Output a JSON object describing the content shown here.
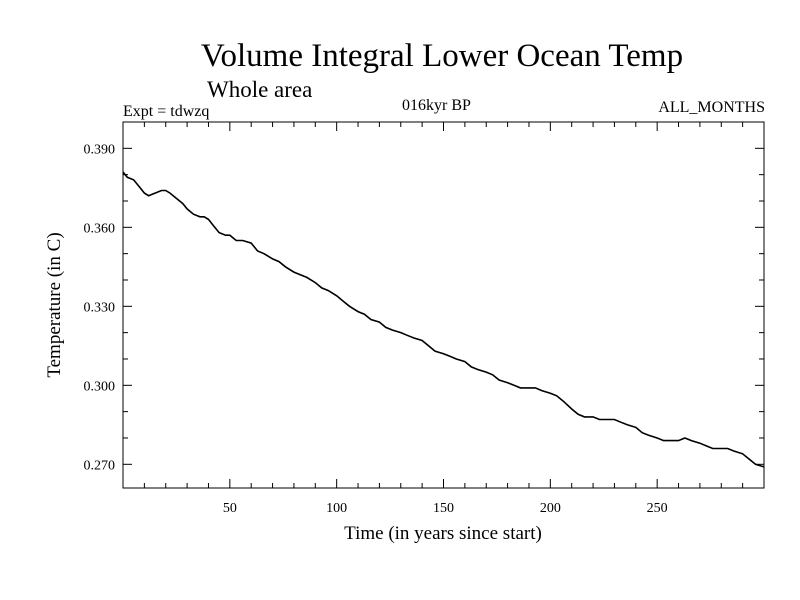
{
  "header": {
    "title": "Volume Integral Lower Ocean Temp",
    "subtitle": "Whole area",
    "expt": "Expt = tdwzq",
    "period": "016kyr BP",
    "months": "ALL_MONTHS"
  },
  "chart_data": {
    "type": "line",
    "title": "Volume Integral Lower Ocean Temp",
    "subtitle": "Whole area",
    "xlabel": "Time (in years since start)",
    "ylabel": "Temperature (in C)",
    "xlim": [
      0,
      300
    ],
    "ylim": [
      0.261,
      0.4
    ],
    "x_ticks": [
      50,
      100,
      150,
      200,
      250
    ],
    "y_ticks": [
      0.27,
      0.3,
      0.33,
      0.36,
      0.39
    ],
    "y_tick_labels": [
      "0.270",
      "0.300",
      "0.330",
      "0.360",
      "0.390"
    ],
    "grid": false,
    "series": [
      {
        "color": "#000000",
        "x": [
          0,
          2,
          5,
          8,
          10,
          12,
          15,
          18,
          20,
          22,
          25,
          28,
          30,
          33,
          36,
          38,
          40,
          42,
          45,
          48,
          50,
          53,
          56,
          60,
          63,
          66,
          70,
          73,
          76,
          80,
          83,
          86,
          90,
          93,
          96,
          100,
          103,
          106,
          110,
          113,
          116,
          120,
          123,
          126,
          130,
          133,
          136,
          140,
          143,
          146,
          150,
          153,
          156,
          160,
          163,
          166,
          170,
          173,
          176,
          180,
          183,
          186,
          190,
          193,
          196,
          200,
          203,
          206,
          210,
          213,
          216,
          220,
          223,
          226,
          230,
          233,
          236,
          240,
          243,
          246,
          250,
          253,
          256,
          260,
          263,
          266,
          270,
          273,
          276,
          280,
          283,
          286,
          290,
          293,
          296,
          300
        ],
        "y": [
          0.381,
          0.379,
          0.378,
          0.375,
          0.373,
          0.372,
          0.373,
          0.374,
          0.374,
          0.373,
          0.371,
          0.369,
          0.367,
          0.365,
          0.364,
          0.364,
          0.363,
          0.361,
          0.358,
          0.357,
          0.357,
          0.355,
          0.355,
          0.354,
          0.351,
          0.35,
          0.348,
          0.347,
          0.345,
          0.343,
          0.342,
          0.341,
          0.339,
          0.337,
          0.336,
          0.334,
          0.332,
          0.33,
          0.328,
          0.327,
          0.325,
          0.324,
          0.322,
          0.321,
          0.32,
          0.319,
          0.318,
          0.317,
          0.315,
          0.313,
          0.312,
          0.311,
          0.31,
          0.309,
          0.307,
          0.306,
          0.305,
          0.304,
          0.302,
          0.301,
          0.3,
          0.299,
          0.299,
          0.299,
          0.298,
          0.297,
          0.296,
          0.294,
          0.291,
          0.289,
          0.288,
          0.288,
          0.287,
          0.287,
          0.287,
          0.286,
          0.285,
          0.284,
          0.282,
          0.281,
          0.28,
          0.279,
          0.279,
          0.279,
          0.28,
          0.279,
          0.278,
          0.277,
          0.276,
          0.276,
          0.276,
          0.275,
          0.274,
          0.272,
          0.27,
          0.269
        ]
      }
    ]
  }
}
